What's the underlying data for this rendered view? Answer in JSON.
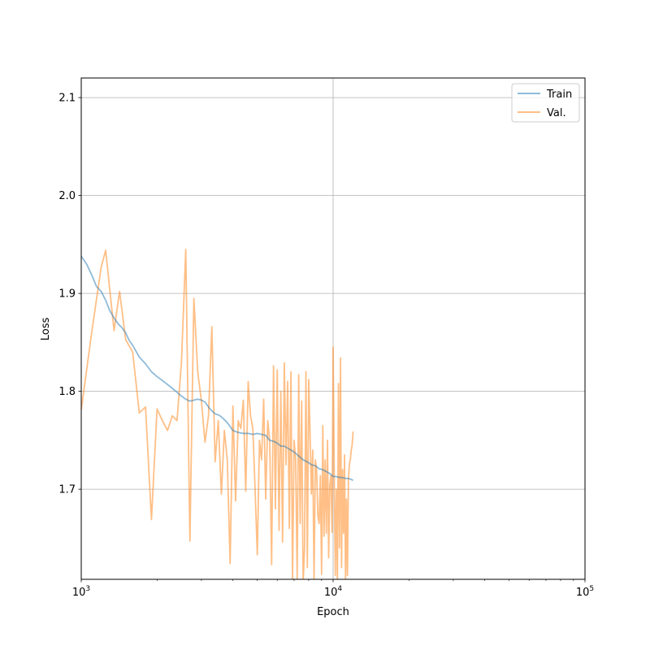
{
  "chart_data": {
    "type": "line",
    "xlabel": "Epoch",
    "ylabel": "Loss",
    "x_scale": "log",
    "xlim": [
      1000,
      100000
    ],
    "ylim": [
      1.608,
      2.12
    ],
    "grid": true,
    "legend_position": "top-right",
    "x_ticks": [
      {
        "value": 1000,
        "base": "10",
        "exp": "3"
      },
      {
        "value": 10000,
        "base": "10",
        "exp": "4"
      },
      {
        "value": 100000,
        "base": "10",
        "exp": "5"
      }
    ],
    "y_ticks": [
      {
        "value": 1.7,
        "label": "1.7"
      },
      {
        "value": 1.8,
        "label": "1.8"
      },
      {
        "value": 1.9,
        "label": "1.9"
      },
      {
        "value": 2.0,
        "label": "2.0"
      },
      {
        "value": 2.1,
        "label": "2.1"
      }
    ],
    "series": [
      {
        "name": "Train",
        "color": "#1f77b4",
        "x": [
          1000,
          1050,
          1100,
          1150,
          1200,
          1250,
          1300,
          1350,
          1400,
          1450,
          1500,
          1550,
          1600,
          1700,
          1800,
          1900,
          2000,
          2100,
          2200,
          2300,
          2400,
          2500,
          2600,
          2700,
          2800,
          2900,
          3000,
          3100,
          3200,
          3300,
          3400,
          3500,
          3600,
          3700,
          3800,
          3900,
          4000,
          4200,
          4400,
          4600,
          4800,
          5000,
          5200,
          5400,
          5600,
          5800,
          6000,
          6200,
          6400,
          6600,
          6800,
          7000,
          7300,
          7600,
          7900,
          8200,
          8500,
          8800,
          9100,
          9400,
          9700,
          10000,
          10300,
          10600,
          10900,
          11200,
          11500,
          11800,
          12000
        ],
        "y": [
          1.938,
          1.93,
          1.919,
          1.907,
          1.902,
          1.893,
          1.882,
          1.875,
          1.869,
          1.865,
          1.86,
          1.852,
          1.847,
          1.835,
          1.828,
          1.82,
          1.815,
          1.811,
          1.807,
          1.803,
          1.799,
          1.795,
          1.792,
          1.79,
          1.791,
          1.792,
          1.791,
          1.789,
          1.784,
          1.78,
          1.777,
          1.776,
          1.774,
          1.771,
          1.768,
          1.764,
          1.76,
          1.758,
          1.757,
          1.757,
          1.756,
          1.757,
          1.756,
          1.755,
          1.75,
          1.749,
          1.747,
          1.744,
          1.744,
          1.742,
          1.74,
          1.738,
          1.734,
          1.73,
          1.728,
          1.725,
          1.724,
          1.721,
          1.72,
          1.718,
          1.716,
          1.713,
          1.713,
          1.712,
          1.712,
          1.711,
          1.711,
          1.71,
          1.709
        ]
      },
      {
        "name": "Val.",
        "color": "#ff7f0e",
        "x": [
          1000,
          1100,
          1200,
          1250,
          1350,
          1420,
          1500,
          1600,
          1700,
          1800,
          1900,
          2000,
          2100,
          2200,
          2300,
          2400,
          2500,
          2600,
          2700,
          2800,
          2900,
          3000,
          3100,
          3200,
          3300,
          3400,
          3500,
          3600,
          3700,
          3800,
          3900,
          4000,
          4100,
          4200,
          4300,
          4400,
          4500,
          4600,
          4700,
          4800,
          4900,
          5000,
          5100,
          5200,
          5300,
          5400,
          5500,
          5600,
          5700,
          5800,
          5900,
          6000,
          6100,
          6200,
          6300,
          6400,
          6500,
          6600,
          6700,
          6800,
          6900,
          7000,
          7100,
          7200,
          7300,
          7400,
          7500,
          7600,
          7700,
          7800,
          7900,
          8000,
          8100,
          8200,
          8300,
          8400,
          8500,
          8600,
          8700,
          8800,
          8900,
          9000,
          9100,
          9200,
          9300,
          9400,
          9500,
          9600,
          9700,
          9800,
          9900,
          10000,
          10100,
          10200,
          10300,
          10400,
          10500,
          10600,
          10700,
          10800,
          10900,
          11000,
          11100,
          11200,
          11300,
          11400,
          11500,
          11600,
          11700,
          11800,
          11900,
          12000
        ],
        "y": [
          1.781,
          1.86,
          1.927,
          1.944,
          1.862,
          1.902,
          1.853,
          1.84,
          1.778,
          1.784,
          1.669,
          1.782,
          1.77,
          1.76,
          1.775,
          1.77,
          1.83,
          1.945,
          1.647,
          1.895,
          1.82,
          1.79,
          1.748,
          1.775,
          1.866,
          1.728,
          1.77,
          1.695,
          1.76,
          1.73,
          1.624,
          1.785,
          1.688,
          1.77,
          1.762,
          1.791,
          1.698,
          1.81,
          1.775,
          1.762,
          1.7,
          1.633,
          1.75,
          1.73,
          1.792,
          1.69,
          1.77,
          1.75,
          1.623,
          1.826,
          1.68,
          1.822,
          1.658,
          1.8,
          1.646,
          1.829,
          1.725,
          1.81,
          1.66,
          1.82,
          1.606,
          1.75,
          1.73,
          1.608,
          1.817,
          1.665,
          1.79,
          1.603,
          1.64,
          1.82,
          1.62,
          1.812,
          1.756,
          1.695,
          1.74,
          1.605,
          1.73,
          1.72,
          1.673,
          1.665,
          1.714,
          1.613,
          1.765,
          1.652,
          1.73,
          1.655,
          1.75,
          1.63,
          1.705,
          1.714,
          1.656,
          1.845,
          1.72,
          1.612,
          1.7,
          1.603,
          1.808,
          1.64,
          1.834,
          1.62,
          1.72,
          1.655,
          1.735,
          1.605,
          1.69,
          1.612,
          1.71,
          1.725,
          1.73,
          1.74,
          1.745,
          1.759
        ]
      }
    ]
  }
}
